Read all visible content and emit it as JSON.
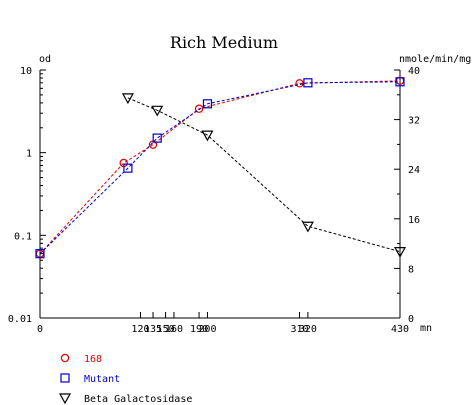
{
  "chart_data": {
    "type": "line",
    "title": "Rich Medium",
    "ylabel_left": "od",
    "ylabel_right": "nmole/min/mg",
    "xunit": "mn",
    "x_ticks": [
      0,
      120,
      135,
      150,
      160,
      190,
      200,
      310,
      320,
      430
    ],
    "x_tick_labels": [
      "0",
      "120",
      "135",
      "150",
      "160",
      "190",
      "200",
      "310",
      "320",
      "430"
    ],
    "xlim": [
      0,
      430
    ],
    "y_left_scale": "log",
    "y_left_lim": [
      0.01,
      10
    ],
    "y_left_ticks": [
      0.01,
      0.1,
      1,
      10
    ],
    "y_left_tick_labels": [
      "0.01",
      "0.1",
      "1",
      "10"
    ],
    "y_right_lim": [
      0,
      40
    ],
    "y_right_ticks": [
      0,
      8,
      16,
      24,
      32,
      40
    ],
    "y_right_tick_labels": [
      "0",
      "8",
      "16",
      "24",
      "32",
      "40"
    ],
    "grid": false,
    "legend_position": "bottom-left",
    "series": [
      {
        "name": "168",
        "axis": "left",
        "marker": "circle",
        "color": "#dd0000",
        "x": [
          0,
          100,
          135,
          190,
          310,
          430
        ],
        "y": [
          0.06,
          0.75,
          1.25,
          3.4,
          6.9,
          7.4
        ]
      },
      {
        "name": "Mutant",
        "axis": "left",
        "marker": "square",
        "color": "#0000cc",
        "x": [
          0,
          105,
          140,
          200,
          320,
          430
        ],
        "y": [
          0.06,
          0.65,
          1.5,
          3.9,
          7.0,
          7.2
        ]
      },
      {
        "name": "Beta Galactosidase",
        "axis": "right",
        "marker": "triangle-down",
        "color": "#000000",
        "x": [
          105,
          140,
          200,
          320,
          430
        ],
        "y": [
          35.5,
          33.5,
          29.5,
          14.8,
          10.7
        ]
      }
    ]
  }
}
